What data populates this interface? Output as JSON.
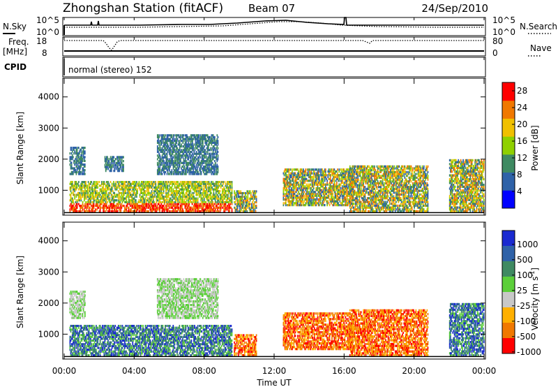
{
  "header": {
    "station": "Zhongshan Station (fitACF)",
    "beam": "Beam 07",
    "date": "24/Sep/2010"
  },
  "status_panels": {
    "nsky_label": "N.Sky",
    "nsearch_label": "N.Search",
    "noise_ticks": [
      "10^5",
      "10^0"
    ],
    "noise_ticks_right": [
      "10^5",
      "10^0"
    ],
    "freq_label": "Freq.",
    "freq_unit": "[MHz]",
    "freq_ticks": [
      "18",
      "8"
    ],
    "nave_label": "Nave",
    "nave_ticks": [
      "80",
      "0"
    ],
    "cpid_label": "CPID",
    "cpid_text": "normal (stereo) 152"
  },
  "chart_data": [
    {
      "type": "heatmap",
      "name": "power",
      "x": {
        "label": "Time UT",
        "range_hours": [
          0,
          24
        ],
        "ticks": [
          "00:00",
          "04:00",
          "08:00",
          "12:00",
          "16:00",
          "20:00",
          "00:00"
        ]
      },
      "y": {
        "label": "Slant Range [km]",
        "range_km": [
          200,
          4600
        ],
        "ticks": [
          "1000",
          "2000",
          "3000",
          "4000"
        ],
        "tick_values": [
          1000,
          2000,
          3000,
          4000
        ]
      },
      "colorbar": {
        "label": "Power [dB]",
        "range": [
          0,
          30
        ],
        "tick_labels": [
          "28",
          "24",
          "20",
          "16",
          "12",
          "8",
          "4"
        ],
        "tick_values": [
          28,
          24,
          20,
          16,
          12,
          8,
          4
        ],
        "colors": [
          "#0000ff",
          "#2f62a8",
          "#3f8a62",
          "#8fd000",
          "#f0c000",
          "#f07800",
          "#ff0000"
        ]
      },
      "echo_regions": [
        {
          "t": [
            0.3,
            9.6
          ],
          "r": [
            300,
            1300
          ],
          "level": "high"
        },
        {
          "t": [
            0.3,
            1.2
          ],
          "r": [
            1500,
            2400
          ],
          "level": "low"
        },
        {
          "t": [
            2.3,
            3.4
          ],
          "r": [
            1600,
            2100
          ],
          "level": "low"
        },
        {
          "t": [
            5.3,
            8.8
          ],
          "r": [
            1500,
            2800
          ],
          "level": "low"
        },
        {
          "t": [
            9.7,
            11.0
          ],
          "r": [
            300,
            1000
          ],
          "level": "mid"
        },
        {
          "t": [
            12.5,
            16.5
          ],
          "r": [
            500,
            1700
          ],
          "level": "mid"
        },
        {
          "t": [
            16.3,
            20.8
          ],
          "r": [
            300,
            1800
          ],
          "level": "mid"
        },
        {
          "t": [
            22.0,
            24.0
          ],
          "r": [
            300,
            2000
          ],
          "level": "mid"
        }
      ]
    },
    {
      "type": "heatmap",
      "name": "velocity",
      "x": {
        "label": "Time UT",
        "range_hours": [
          0,
          24
        ],
        "ticks": [
          "00:00",
          "04:00",
          "08:00",
          "12:00",
          "16:00",
          "20:00",
          "00:00"
        ]
      },
      "y": {
        "label": "Slant Range [km]",
        "range_km": [
          200,
          4600
        ],
        "ticks": [
          "1000",
          "2000",
          "3000",
          "4000"
        ],
        "tick_values": [
          1000,
          2000,
          3000,
          4000
        ]
      },
      "colorbar": {
        "label": "Velocity [m s",
        "label_sup": "-1",
        "label_end": "]",
        "tick_labels": [
          "1000",
          "500",
          "100",
          "25",
          "-25",
          "-100",
          "-500",
          "-1000"
        ],
        "colors": [
          "#1a2ad0",
          "#2f62a8",
          "#3f8a62",
          "#5ccf3a",
          "#c8c8c8",
          "#ffb000",
          "#f07800",
          "#ff0000"
        ]
      },
      "echo_regions": [
        {
          "t": [
            0.3,
            9.6
          ],
          "r": [
            300,
            1300
          ],
          "sign": "positive"
        },
        {
          "t": [
            0.3,
            1.2
          ],
          "r": [
            1500,
            2400
          ],
          "sign": "near-zero"
        },
        {
          "t": [
            5.3,
            8.8
          ],
          "r": [
            1500,
            2800
          ],
          "sign": "near-zero"
        },
        {
          "t": [
            9.7,
            11.0
          ],
          "r": [
            300,
            1000
          ],
          "sign": "negative"
        },
        {
          "t": [
            12.5,
            16.5
          ],
          "r": [
            500,
            1700
          ],
          "sign": "negative"
        },
        {
          "t": [
            16.3,
            20.8
          ],
          "r": [
            300,
            1800
          ],
          "sign": "negative"
        },
        {
          "t": [
            22.0,
            24.0
          ],
          "r": [
            300,
            2000
          ],
          "sign": "positive"
        }
      ]
    }
  ]
}
